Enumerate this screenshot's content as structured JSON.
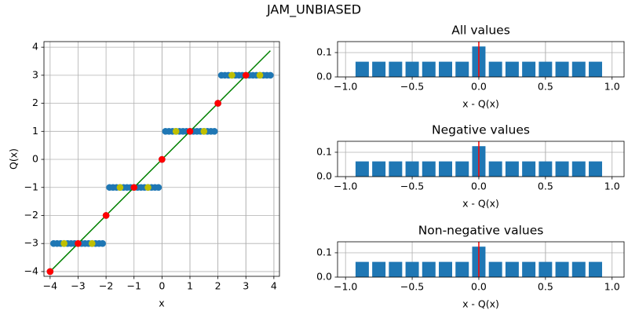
{
  "title": "JAM_UNBIASED",
  "chart_data": [
    {
      "type": "scatter",
      "xlabel": "x",
      "ylabel": "Q(x)",
      "grid": true,
      "xlim": [
        -4.22,
        4.2
      ],
      "ylim": [
        -4.17,
        4.2
      ],
      "xticks": [
        {
          "value": -4,
          "label": "−4"
        },
        {
          "value": -3,
          "label": "−3"
        },
        {
          "value": -2,
          "label": "−2"
        },
        {
          "value": -1,
          "label": "−1"
        },
        0,
        1,
        2,
        3,
        4
      ],
      "yticks": [
        {
          "value": -4,
          "label": "−4"
        },
        {
          "value": -3,
          "label": "−3"
        },
        {
          "value": -2,
          "label": "−2"
        },
        {
          "value": -1,
          "label": "−1"
        },
        0,
        1,
        2,
        3,
        4
      ],
      "series": [
        {
          "type": "scatter",
          "color": "#1f77b4",
          "x": [
            -4,
            -3.875,
            -3.75,
            -3.625,
            -3.5,
            -3.375,
            -3.25,
            -3.125,
            -3,
            -2.875,
            -2.75,
            -2.625,
            -2.5,
            -2.375,
            -2.25,
            -2.125,
            -2,
            -1.875,
            -1.75,
            -1.625,
            -1.5,
            -1.375,
            -1.25,
            -1.125,
            -1,
            -0.875,
            -0.75,
            -0.625,
            -0.5,
            -0.375,
            -0.25,
            -0.125,
            0,
            0.125,
            0.25,
            0.375,
            0.5,
            0.625,
            0.75,
            0.875,
            1,
            1.125,
            1.25,
            1.375,
            1.5,
            1.625,
            1.75,
            1.875,
            2,
            2.125,
            2.25,
            2.375,
            2.5,
            2.625,
            2.75,
            2.875,
            3,
            3.125,
            3.25,
            3.375,
            3.5,
            3.625,
            3.75,
            3.875
          ],
          "y": [
            -4,
            -3,
            -3,
            -3,
            -3,
            -3,
            -3,
            -3,
            -3,
            -3,
            -3,
            -3,
            -3,
            -3,
            -3,
            -3,
            -2,
            -1,
            -1,
            -1,
            -1,
            -1,
            -1,
            -1,
            -1,
            -1,
            -1,
            -1,
            -1,
            -1,
            -1,
            -1,
            0,
            1,
            1,
            1,
            1,
            1,
            1,
            1,
            1,
            1,
            1,
            1,
            1,
            1,
            1,
            1,
            2,
            3,
            3,
            3,
            3,
            3,
            3,
            3,
            3,
            3,
            3,
            3,
            3,
            3,
            3,
            3
          ]
        },
        {
          "type": "line",
          "color": "#008000",
          "x": [
            -4,
            3.875
          ],
          "y": [
            -4,
            3.875
          ]
        },
        {
          "type": "scatter",
          "color": "#ff0000",
          "x": [
            -4,
            -3,
            -2,
            -1,
            0,
            1,
            2,
            3
          ],
          "y": [
            -4,
            -3,
            -2,
            -1,
            0,
            1,
            2,
            3
          ]
        },
        {
          "type": "scatter",
          "color": "#bfbf00",
          "x": [
            -3.5,
            -2.5,
            -1.5,
            -0.5,
            0.5,
            1.5,
            2.5,
            3.5
          ],
          "y": [
            -3,
            -3,
            -1,
            -1,
            1,
            1,
            3,
            3
          ]
        }
      ]
    },
    {
      "type": "histogram",
      "title": "All values",
      "xlabel": "x - Q(x)",
      "grid": true,
      "color": "#1f77b4",
      "vline": 0,
      "vline_color": "#ff0000",
      "bins": [
        -0.9375,
        -0.8125,
        -0.6875,
        -0.5625,
        -0.4375,
        -0.3125,
        -0.1875,
        -0.0625,
        0.0625,
        0.1875,
        0.3125,
        0.4375,
        0.5625,
        0.6875,
        0.8125,
        0.9375
      ],
      "values": [
        0.0625,
        0.0625,
        0.0625,
        0.0625,
        0.0625,
        0.0625,
        0.0625,
        0.125,
        0.0625,
        0.0625,
        0.0625,
        0.0625,
        0.0625,
        0.0625,
        0.0625
      ],
      "xlim": [
        -1.06,
        1.09
      ],
      "ylim": [
        0,
        0.145
      ],
      "xticks": [
        {
          "value": -1,
          "label": "−1.0"
        },
        {
          "value": -0.5,
          "label": "−0.5"
        },
        {
          "value": 0,
          "label": "0.0"
        },
        0.5,
        {
          "value": 1,
          "label": "1.0"
        }
      ],
      "yticks": [
        {
          "value": 0,
          "label": "0.0"
        },
        0.1
      ]
    },
    {
      "type": "histogram",
      "title": "Negative values",
      "xlabel": "x - Q(x)",
      "grid": true,
      "color": "#1f77b4",
      "vline": 0,
      "vline_color": "#ff0000",
      "bins": [
        -0.9375,
        -0.8125,
        -0.6875,
        -0.5625,
        -0.4375,
        -0.3125,
        -0.1875,
        -0.0625,
        0.0625,
        0.1875,
        0.3125,
        0.4375,
        0.5625,
        0.6875,
        0.8125,
        0.9375
      ],
      "values": [
        0.0625,
        0.0625,
        0.0625,
        0.0625,
        0.0625,
        0.0625,
        0.0625,
        0.125,
        0.0625,
        0.0625,
        0.0625,
        0.0625,
        0.0625,
        0.0625,
        0.0625
      ],
      "xlim": [
        -1.06,
        1.09
      ],
      "ylim": [
        0,
        0.145
      ],
      "xticks": [
        {
          "value": -1,
          "label": "−1.0"
        },
        {
          "value": -0.5,
          "label": "−0.5"
        },
        {
          "value": 0,
          "label": "0.0"
        },
        0.5,
        {
          "value": 1,
          "label": "1.0"
        }
      ],
      "yticks": [
        {
          "value": 0,
          "label": "0.0"
        },
        0.1
      ]
    },
    {
      "type": "histogram",
      "title": "Non-negative values",
      "xlabel": "x - Q(x)",
      "grid": true,
      "color": "#1f77b4",
      "vline": 0,
      "vline_color": "#ff0000",
      "bins": [
        -0.9375,
        -0.8125,
        -0.6875,
        -0.5625,
        -0.4375,
        -0.3125,
        -0.1875,
        -0.0625,
        0.0625,
        0.1875,
        0.3125,
        0.4375,
        0.5625,
        0.6875,
        0.8125,
        0.9375
      ],
      "values": [
        0.0625,
        0.0625,
        0.0625,
        0.0625,
        0.0625,
        0.0625,
        0.0625,
        0.125,
        0.0625,
        0.0625,
        0.0625,
        0.0625,
        0.0625,
        0.0625,
        0.0625
      ],
      "xlim": [
        -1.06,
        1.09
      ],
      "ylim": [
        0,
        0.145
      ],
      "xticks": [
        {
          "value": -1,
          "label": "−1.0"
        },
        {
          "value": -0.5,
          "label": "−0.5"
        },
        {
          "value": 0,
          "label": "0.0"
        },
        0.5,
        {
          "value": 1,
          "label": "1.0"
        }
      ],
      "yticks": [
        {
          "value": 0,
          "label": "0.0"
        },
        0.1
      ]
    }
  ]
}
